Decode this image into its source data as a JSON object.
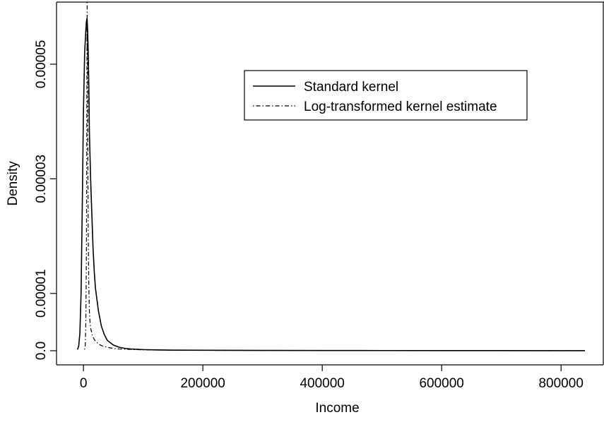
{
  "chart_data": {
    "type": "line",
    "title": "",
    "xlabel": "Income",
    "ylabel": "Density",
    "xlim": [
      -12000,
      840000
    ],
    "ylim": [
      0,
      5.8e-05
    ],
    "x_ticks": [
      0,
      200000,
      400000,
      600000,
      800000
    ],
    "x_tick_labels": [
      "0",
      "200000",
      "400000",
      "600000",
      "800000"
    ],
    "y_ticks": [
      0,
      1e-05,
      3e-05,
      5e-05
    ],
    "y_tick_labels": [
      "0.0",
      "0.00001",
      "0.00003",
      "0.00005"
    ],
    "grid": false,
    "legend_position": "top-right",
    "series": [
      {
        "name": "Standard kernel",
        "style": "solid",
        "color": "#000000",
        "x": [
          -10000,
          -8000,
          -6000,
          -4000,
          -2000,
          0,
          2000,
          4000,
          5000,
          6000,
          7000,
          8000,
          9000,
          10000,
          12000,
          14000,
          16000,
          18000,
          20000,
          25000,
          30000,
          35000,
          40000,
          50000,
          60000,
          70000,
          80000,
          100000,
          120000,
          150000,
          200000,
          300000,
          400000,
          500000,
          600000,
          700000,
          800000,
          840000
        ],
        "y": [
          2e-07,
          8e-07,
          3e-06,
          1e-05,
          2.5e-05,
          4.2e-05,
          5.2e-05,
          5.6e-05,
          5.75e-05,
          5.8e-05,
          5.6e-05,
          5.2e-05,
          4.6e-05,
          3.8e-05,
          3e-05,
          2.4e-05,
          1.8e-05,
          1.4e-05,
          1.1e-05,
          7e-06,
          4.3e-06,
          2.8e-06,
          1.8e-06,
          1e-06,
          6e-07,
          4e-07,
          3e-07,
          2e-07,
          1.5e-07,
          1e-07,
          8e-08,
          5e-08,
          4e-08,
          3e-08,
          2e-08,
          2e-08,
          1e-08,
          1e-08
        ]
      },
      {
        "name": "Log-transformed kernel estimate",
        "style": "dotdash",
        "color": "#000000",
        "x": [
          2000,
          3000,
          4000,
          5000,
          5500,
          6000,
          6500,
          7000,
          7500,
          8000,
          9000,
          10000,
          11000,
          12000,
          14000,
          16000,
          18000,
          20000,
          25000,
          30000,
          40000,
          50000,
          60000,
          80000,
          100000,
          150000,
          200000,
          300000,
          400000,
          500000,
          600000,
          700000,
          800000,
          840000
        ],
        "y": [
          2e-07,
          1e-06,
          5e-06,
          1.8e-05,
          3.5e-05,
          5.8e-05,
          5.8e-05,
          4.5e-05,
          3e-05,
          2e-05,
          1.1e-05,
          6.8e-06,
          5e-06,
          4e-06,
          3e-06,
          2.4e-06,
          2e-06,
          1.7e-06,
          1.2e-06,
          9e-07,
          6e-07,
          4e-07,
          3e-07,
          2.2e-07,
          1.6e-07,
          1e-07,
          7e-08,
          5e-08,
          4e-08,
          3e-08,
          2e-08,
          2e-08,
          1e-08,
          1e-08
        ]
      }
    ]
  }
}
